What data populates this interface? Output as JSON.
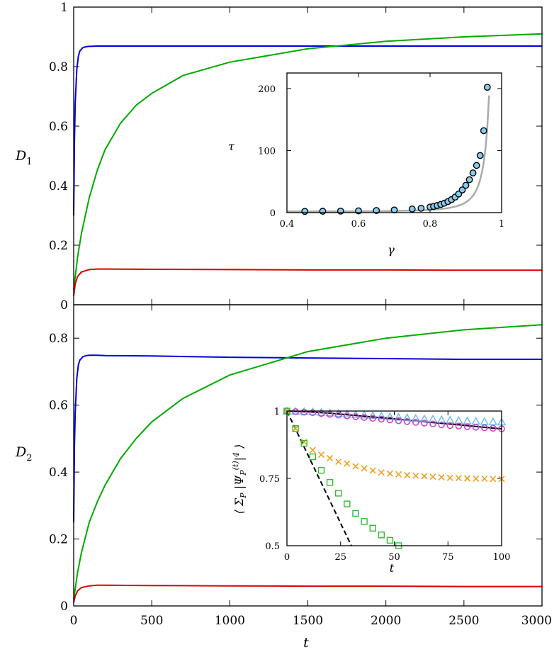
{
  "chart_data": [
    {
      "type": "line",
      "panel": "top",
      "xlabel": "",
      "ylabel": "D_1",
      "xlim": [
        0,
        3000
      ],
      "ylim": [
        0,
        1
      ],
      "yticks": [
        "0",
        "0.2",
        "0.4",
        "0.6",
        "0.8",
        "1"
      ],
      "series": [
        {
          "color": "#0000dd",
          "x": [
            0,
            5,
            10,
            20,
            30,
            40,
            60,
            80,
            100,
            150,
            200,
            300,
            500,
            1000,
            1500,
            2000,
            2500,
            3000
          ],
          "y": [
            0.3,
            0.55,
            0.68,
            0.79,
            0.835,
            0.853,
            0.864,
            0.867,
            0.868,
            0.869,
            0.869,
            0.869,
            0.869,
            0.869,
            0.869,
            0.869,
            0.869,
            0.869
          ]
        },
        {
          "color": "#00aa00",
          "x": [
            0,
            25,
            50,
            100,
            150,
            200,
            300,
            400,
            500,
            700,
            1000,
            1500,
            2000,
            2500,
            3000
          ],
          "y": [
            0.05,
            0.16,
            0.24,
            0.36,
            0.45,
            0.52,
            0.61,
            0.67,
            0.71,
            0.77,
            0.815,
            0.86,
            0.885,
            0.9,
            0.91
          ]
        },
        {
          "color": "#dd0000",
          "x": [
            0,
            10,
            25,
            50,
            100,
            150,
            200,
            500,
            1000,
            1500,
            2000,
            2500,
            3000
          ],
          "y": [
            0.03,
            0.07,
            0.095,
            0.11,
            0.118,
            0.12,
            0.12,
            0.119,
            0.118,
            0.117,
            0.117,
            0.116,
            0.116
          ]
        }
      ]
    },
    {
      "type": "scatter",
      "panel": "top-inset",
      "xlabel": "γ",
      "ylabel": "τ",
      "xlim": [
        0.4,
        1
      ],
      "ylim": [
        0,
        225
      ],
      "xticks": [
        "0.4",
        "0.6",
        "0.8",
        "1"
      ],
      "yticks": [
        "0",
        "100",
        "200"
      ],
      "fit_line_color": "#aaaaaa",
      "points": {
        "x": [
          0.45,
          0.5,
          0.55,
          0.6,
          0.65,
          0.7,
          0.75,
          0.775,
          0.8,
          0.81,
          0.82,
          0.83,
          0.84,
          0.85,
          0.86,
          0.87,
          0.88,
          0.89,
          0.9,
          0.91,
          0.92,
          0.93,
          0.94,
          0.95,
          0.96
        ],
        "y": [
          2,
          2.2,
          2.4,
          2.8,
          3.4,
          4.3,
          5.8,
          7,
          9,
          10,
          11.5,
          13.2,
          15.2,
          17.8,
          21,
          25,
          30,
          36.5,
          44,
          53,
          64,
          76,
          92,
          132,
          202
        ]
      }
    },
    {
      "type": "line",
      "panel": "bottom",
      "xlabel": "t",
      "ylabel": "D_2",
      "xlim": [
        0,
        3000
      ],
      "ylim": [
        0,
        0.9
      ],
      "xticks": [
        "0",
        "500",
        "1000",
        "1500",
        "2000",
        "2500",
        "3000"
      ],
      "yticks": [
        "0",
        "0.2",
        "0.4",
        "0.6",
        "0.8"
      ],
      "series": [
        {
          "color": "#0000dd",
          "x": [
            0,
            5,
            10,
            20,
            30,
            40,
            60,
            80,
            100,
            150,
            200,
            500,
            1000,
            1500,
            2000,
            2500,
            3000
          ],
          "y": [
            0.25,
            0.48,
            0.58,
            0.68,
            0.72,
            0.735,
            0.745,
            0.748,
            0.749,
            0.749,
            0.748,
            0.747,
            0.743,
            0.741,
            0.739,
            0.737,
            0.737
          ]
        },
        {
          "color": "#00aa00",
          "x": [
            0,
            25,
            50,
            100,
            150,
            200,
            300,
            400,
            500,
            700,
            1000,
            1500,
            2000,
            2500,
            3000
          ],
          "y": [
            0.02,
            0.1,
            0.16,
            0.25,
            0.31,
            0.36,
            0.44,
            0.5,
            0.55,
            0.62,
            0.69,
            0.76,
            0.8,
            0.825,
            0.84
          ]
        },
        {
          "color": "#dd0000",
          "x": [
            0,
            10,
            25,
            50,
            100,
            150,
            200,
            500,
            1000,
            1500,
            2000,
            2500,
            3000
          ],
          "y": [
            0.01,
            0.03,
            0.045,
            0.055,
            0.06,
            0.062,
            0.062,
            0.061,
            0.06,
            0.059,
            0.059,
            0.058,
            0.058
          ]
        }
      ]
    },
    {
      "type": "scatter",
      "panel": "bottom-inset",
      "xlabel": "t",
      "ylabel": "⟨ Σ_P |Ψ_P^(t)|^4 ⟩",
      "xlim": [
        0,
        100
      ],
      "ylim": [
        0.5,
        1
      ],
      "xticks": [
        "0",
        "25",
        "50",
        "75",
        "100"
      ],
      "yticks": [
        "0.5",
        "0.75",
        "1"
      ],
      "dashed_line": {
        "x": [
          0,
          30
        ],
        "y": [
          1,
          0.5
        ]
      },
      "solid_line": {
        "x": [
          0,
          10,
          20,
          30,
          40,
          50,
          60,
          70,
          80,
          90,
          100
        ],
        "y": [
          1,
          0.997,
          0.992,
          0.985,
          0.978,
          0.971,
          0.963,
          0.956,
          0.949,
          0.941,
          0.934
        ]
      },
      "marker_series": [
        {
          "marker": "triangle",
          "color": "#66bbee",
          "x": [
            0,
            4,
            8,
            12,
            16,
            20,
            24,
            28,
            32,
            36,
            40,
            44,
            48,
            52,
            56,
            60,
            64,
            68,
            72,
            76,
            80,
            84,
            88,
            92,
            96,
            100
          ],
          "y": [
            1,
            0.999,
            0.998,
            0.997,
            0.995,
            0.993,
            0.991,
            0.989,
            0.987,
            0.985,
            0.983,
            0.981,
            0.979,
            0.977,
            0.975,
            0.973,
            0.971,
            0.97,
            0.968,
            0.966,
            0.965,
            0.963,
            0.962,
            0.961,
            0.96,
            0.959
          ]
        },
        {
          "marker": "circle",
          "color": "#cc44cc",
          "x": [
            0,
            4,
            8,
            12,
            16,
            20,
            24,
            28,
            32,
            36,
            40,
            44,
            48,
            52,
            56,
            60,
            64,
            68,
            72,
            76,
            80,
            84,
            88,
            92,
            96,
            100
          ],
          "y": [
            1,
            0.998,
            0.996,
            0.994,
            0.991,
            0.988,
            0.985,
            0.982,
            0.979,
            0.976,
            0.973,
            0.97,
            0.967,
            0.964,
            0.961,
            0.958,
            0.955,
            0.952,
            0.949,
            0.946,
            0.944,
            0.942,
            0.94,
            0.938,
            0.936,
            0.934
          ]
        },
        {
          "marker": "cross",
          "color": "#f0a020",
          "x": [
            0,
            4,
            8,
            12,
            16,
            20,
            24,
            28,
            32,
            36,
            40,
            44,
            48,
            52,
            56,
            60,
            64,
            68,
            72,
            76,
            80,
            84,
            88,
            92,
            96,
            100
          ],
          "y": [
            1,
            0.935,
            0.885,
            0.855,
            0.838,
            0.825,
            0.812,
            0.805,
            0.795,
            0.787,
            0.779,
            0.772,
            0.768,
            0.765,
            0.762,
            0.76,
            0.758,
            0.756,
            0.754,
            0.752,
            0.751,
            0.75,
            0.749,
            0.749,
            0.748,
            0.748
          ]
        },
        {
          "marker": "square",
          "color": "#33bb33",
          "x": [
            0,
            4,
            8,
            12,
            16,
            20,
            24,
            28,
            32,
            36,
            40,
            44,
            48,
            52
          ],
          "y": [
            1,
            0.935,
            0.88,
            0.83,
            0.78,
            0.735,
            0.695,
            0.655,
            0.62,
            0.59,
            0.565,
            0.54,
            0.52,
            0.5
          ]
        }
      ]
    }
  ]
}
